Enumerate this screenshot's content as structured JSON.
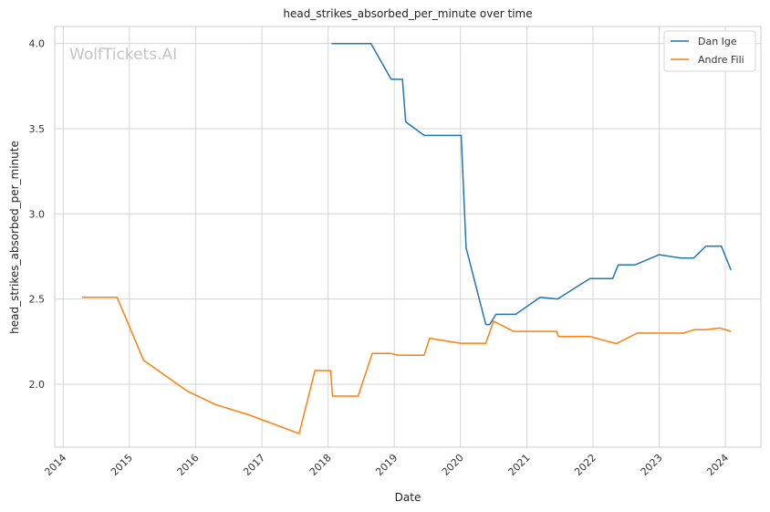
{
  "chart_data": {
    "type": "line",
    "title": "head_strikes_absorbed_per_minute over time",
    "xlabel": "Date",
    "ylabel": "head_strikes_absorbed_per_minute",
    "watermark": "WolfTickets.AI",
    "xlim": [
      "2013-11-15",
      "2024-07-15"
    ],
    "ylim": [
      1.63,
      4.1
    ],
    "x_ticks": [
      "2014",
      "2015",
      "2016",
      "2017",
      "2018",
      "2019",
      "2020",
      "2021",
      "2022",
      "2023",
      "2024"
    ],
    "y_ticks": [
      "2.0",
      "2.5",
      "3.0",
      "3.5",
      "4.0"
    ],
    "grid": true,
    "legend_position": "top-right",
    "series": [
      {
        "name": "Dan Ige",
        "color": "#1f77b4",
        "points": [
          [
            "2018-01-20",
            4.0
          ],
          [
            "2018-08-25",
            4.0
          ],
          [
            "2018-12-15",
            3.79
          ],
          [
            "2019-02-15",
            3.79
          ],
          [
            "2019-03-05",
            3.54
          ],
          [
            "2019-06-15",
            3.46
          ],
          [
            "2020-01-05",
            3.46
          ],
          [
            "2020-02-01",
            2.8
          ],
          [
            "2020-05-20",
            2.35
          ],
          [
            "2020-06-10",
            2.35
          ],
          [
            "2020-07-15",
            2.41
          ],
          [
            "2020-11-01",
            2.41
          ],
          [
            "2021-03-15",
            2.51
          ],
          [
            "2021-06-20",
            2.5
          ],
          [
            "2021-12-15",
            2.62
          ],
          [
            "2022-04-20",
            2.62
          ],
          [
            "2022-05-20",
            2.7
          ],
          [
            "2022-08-20",
            2.7
          ],
          [
            "2023-01-01",
            2.76
          ],
          [
            "2023-05-01",
            2.74
          ],
          [
            "2023-07-10",
            2.74
          ],
          [
            "2023-09-15",
            2.81
          ],
          [
            "2023-12-10",
            2.81
          ],
          [
            "2024-02-01",
            2.67
          ]
        ]
      },
      {
        "name": "Andre Fili",
        "color": "#ff7f0e",
        "points": [
          [
            "2014-04-15",
            2.51
          ],
          [
            "2014-10-25",
            2.51
          ],
          [
            "2015-03-20",
            2.14
          ],
          [
            "2015-11-15",
            1.96
          ],
          [
            "2016-04-20",
            1.88
          ],
          [
            "2016-10-20",
            1.82
          ],
          [
            "2017-07-25",
            1.71
          ],
          [
            "2017-10-20",
            2.08
          ],
          [
            "2018-01-15",
            2.08
          ],
          [
            "2018-01-25",
            1.93
          ],
          [
            "2018-06-15",
            1.93
          ],
          [
            "2018-09-01",
            2.18
          ],
          [
            "2018-12-15",
            2.18
          ],
          [
            "2019-01-20",
            2.17
          ],
          [
            "2019-06-15",
            2.17
          ],
          [
            "2019-07-15",
            2.27
          ],
          [
            "2020-01-01",
            2.24
          ],
          [
            "2020-05-20",
            2.24
          ],
          [
            "2020-07-01",
            2.37
          ],
          [
            "2020-07-20",
            2.36
          ],
          [
            "2020-10-20",
            2.31
          ],
          [
            "2021-06-15",
            2.31
          ],
          [
            "2021-06-25",
            2.28
          ],
          [
            "2021-12-15",
            2.28
          ],
          [
            "2022-05-01",
            2.24
          ],
          [
            "2022-05-15",
            2.24
          ],
          [
            "2022-09-01",
            2.3
          ],
          [
            "2023-05-15",
            2.3
          ],
          [
            "2023-07-15",
            2.32
          ],
          [
            "2023-09-15",
            2.32
          ],
          [
            "2023-12-01",
            2.33
          ],
          [
            "2024-02-01",
            2.31
          ]
        ]
      }
    ]
  }
}
